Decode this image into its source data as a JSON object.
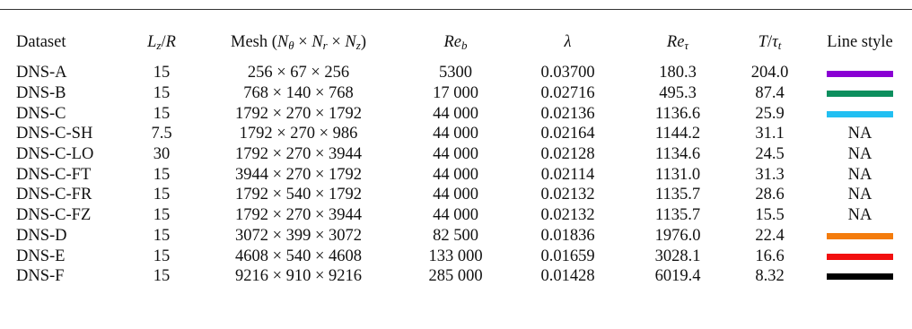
{
  "headers": {
    "dataset": "Dataset",
    "lz_r": "L_z/R",
    "mesh": "Mesh (N_θ × N_r × N_z)",
    "reb": "Re_b",
    "lambda": "λ",
    "retau": "Re_τ",
    "t_tau": "T/τ_t",
    "line_style": "Line style"
  },
  "rows": [
    {
      "dataset": "DNS-A",
      "lz_r": "15",
      "mesh": "256 × 67 × 256",
      "reb": "5300",
      "lambda": "0.03700",
      "retau": "180.3",
      "t_tau": "204.0",
      "line_color": "#8a00d4"
    },
    {
      "dataset": "DNS-B",
      "lz_r": "15",
      "mesh": "768 × 140 × 768",
      "reb": "17 000",
      "lambda": "0.02716",
      "retau": "495.3",
      "t_tau": "87.4",
      "line_color": "#0c8f5e"
    },
    {
      "dataset": "DNS-C",
      "lz_r": "15",
      "mesh": "1792 × 270 × 1792",
      "reb": "44 000",
      "lambda": "0.02136",
      "retau": "1136.6",
      "t_tau": "25.9",
      "line_color": "#22bff2"
    },
    {
      "dataset": "DNS-C-SH",
      "lz_r": "7.5",
      "mesh": "1792 × 270 × 986",
      "reb": "44 000",
      "lambda": "0.02164",
      "retau": "1144.2",
      "t_tau": "31.1",
      "line_text": "NA"
    },
    {
      "dataset": "DNS-C-LO",
      "lz_r": "30",
      "mesh": "1792 × 270 × 3944",
      "reb": "44 000",
      "lambda": "0.02128",
      "retau": "1134.6",
      "t_tau": "24.5",
      "line_text": "NA"
    },
    {
      "dataset": "DNS-C-FT",
      "lz_r": "15",
      "mesh": "3944 × 270 × 1792",
      "reb": "44 000",
      "lambda": "0.02114",
      "retau": "1131.0",
      "t_tau": "31.3",
      "line_text": "NA"
    },
    {
      "dataset": "DNS-C-FR",
      "lz_r": "15",
      "mesh": "1792 × 540 × 1792",
      "reb": "44 000",
      "lambda": "0.02132",
      "retau": "1135.7",
      "t_tau": "28.6",
      "line_text": "NA"
    },
    {
      "dataset": "DNS-C-FZ",
      "lz_r": "15",
      "mesh": "1792 × 270 × 3944",
      "reb": "44 000",
      "lambda": "0.02132",
      "retau": "1135.7",
      "t_tau": "15.5",
      "line_text": "NA"
    },
    {
      "dataset": "DNS-D",
      "lz_r": "15",
      "mesh": "3072 × 399 × 3072",
      "reb": "82 500",
      "lambda": "0.01836",
      "retau": "1976.0",
      "t_tau": "22.4",
      "line_color": "#f47c0c"
    },
    {
      "dataset": "DNS-E",
      "lz_r": "15",
      "mesh": "4608 × 540 × 4608",
      "reb": "133 000",
      "lambda": "0.01659",
      "retau": "3028.1",
      "t_tau": "16.6",
      "line_color": "#f21010"
    },
    {
      "dataset": "DNS-F",
      "lz_r": "15",
      "mesh": "9216 × 910 × 9216",
      "reb": "285 000",
      "lambda": "0.01428",
      "retau": "6019.4",
      "t_tau": "8.32",
      "line_color": "#000000"
    }
  ]
}
